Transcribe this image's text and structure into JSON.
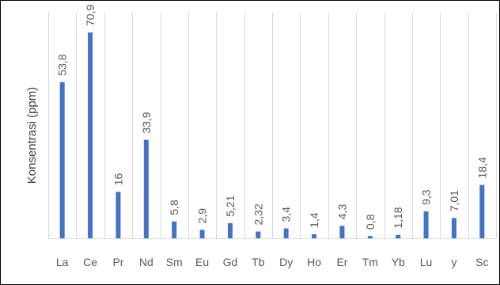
{
  "chart_data": {
    "type": "bar",
    "title": "",
    "xlabel": "",
    "ylabel": "Konsentrasi (ppm)",
    "categories": [
      "La",
      "Ce",
      "Pr",
      "Nd",
      "Sm",
      "Eu",
      "Gd",
      "Tb",
      "Dy",
      "Ho",
      "Er",
      "Tm",
      "Yb",
      "Lu",
      "y",
      "Sc"
    ],
    "values": [
      53.8,
      70.9,
      16,
      33.9,
      5.8,
      2.9,
      5.21,
      2.32,
      3.4,
      1.4,
      4.3,
      0.8,
      1.18,
      9.3,
      7.01,
      18.4
    ],
    "data_labels": [
      "53,8",
      "70,9",
      "16",
      "33,9",
      "5,8",
      "2,9",
      "5,21",
      "2,32",
      "3,4",
      "1,4",
      "4,3",
      "0,8",
      "1,18",
      "9,3",
      "7,01",
      "18,4"
    ],
    "ylim": [
      0,
      70.9
    ],
    "grid": "vertical category separators",
    "legend": "none",
    "bar_color": "#4472C4",
    "grid_color": "#D9D9D9"
  }
}
